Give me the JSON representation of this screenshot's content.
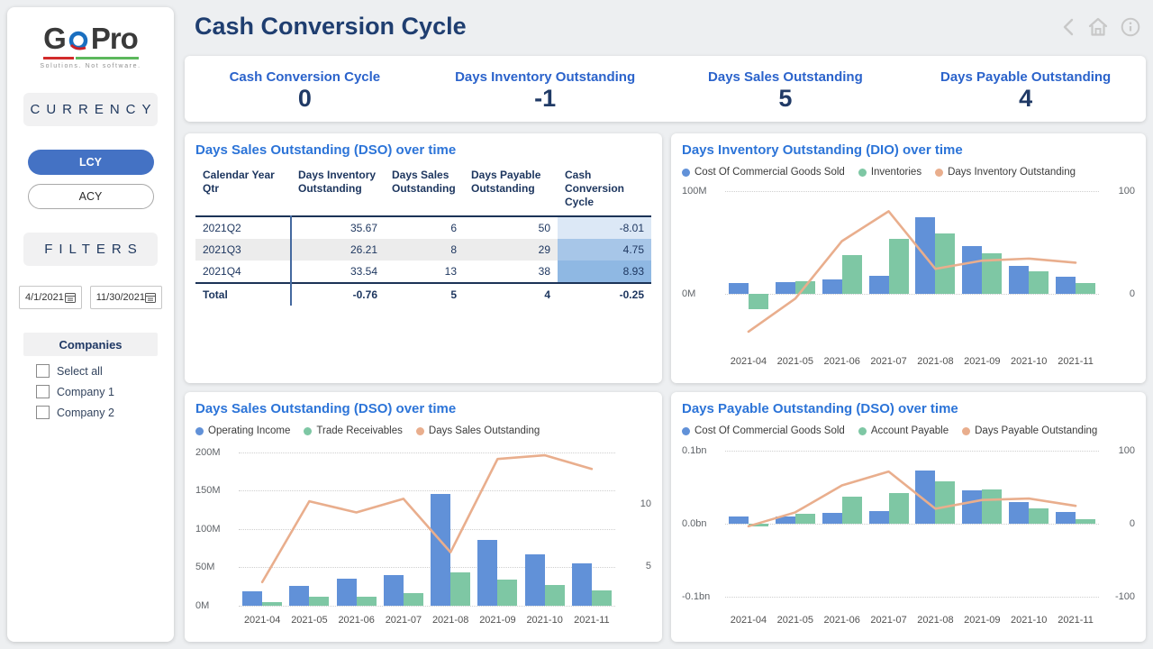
{
  "sidebar": {
    "logo": {
      "text_g": "G",
      "text_pro": "Pro",
      "tagline": "Solutions. Not software."
    },
    "currency_header": "CURRENCY",
    "lcy_label": "LCY",
    "acy_label": "ACY",
    "filters_header": "FILTERS",
    "date_from": "4/1/2021",
    "date_to": "11/30/2021",
    "companies": {
      "header": "Companies",
      "options": [
        "Select all",
        "Company 1",
        "Company 2"
      ],
      "checked": [
        false,
        false,
        false
      ]
    }
  },
  "header": {
    "title": "Cash Conversion Cycle"
  },
  "nav_icons": [
    "back-chevron",
    "home",
    "info"
  ],
  "kpis": [
    {
      "label": "Cash Conversion Cycle",
      "value": "0"
    },
    {
      "label": "Days Inventory Outstanding",
      "value": "-1"
    },
    {
      "label": "Days Sales Outstanding",
      "value": "5"
    },
    {
      "label": "Days Payable Outstanding",
      "value": "4"
    }
  ],
  "table_panel": {
    "title": "Days Sales Outstanding (DSO) over time",
    "columns": [
      "Calendar Year Qtr",
      "Days Inventory Outstanding",
      "Days Sales Outstanding",
      "Days Payable Outstanding",
      "Cash Conversion Cycle"
    ],
    "rows": [
      {
        "cells": [
          "2021Q2",
          "35.67",
          "6",
          "50",
          "-8.01"
        ],
        "ccc_bg": "#dce8f6",
        "striped": false
      },
      {
        "cells": [
          "2021Q3",
          "26.21",
          "8",
          "29",
          "4.75"
        ],
        "ccc_bg": "#a7c6e8",
        "striped": true
      },
      {
        "cells": [
          "2021Q4",
          "33.54",
          "13",
          "38",
          "8.93"
        ],
        "ccc_bg": "#8fb8e3",
        "striped": false
      }
    ],
    "total": [
      "Total",
      "-0.76",
      "5",
      "4",
      "-0.25"
    ]
  },
  "chart_data": [
    {
      "type": "combo",
      "title": "Days Inventory Outstanding (DIO) over time",
      "categories": [
        "2021-04",
        "2021-05",
        "2021-06",
        "2021-07",
        "2021-08",
        "2021-09",
        "2021-10",
        "2021-11"
      ],
      "series": [
        {
          "name": "Cost Of Commercial Goods Sold",
          "type": "bar",
          "axis": "left",
          "color": "#6191d8",
          "values": [
            10,
            11,
            14,
            17,
            74,
            46,
            27,
            16
          ]
        },
        {
          "name": "Inventories",
          "type": "bar",
          "axis": "left",
          "color": "#7ec7a4",
          "values": [
            -15,
            12,
            37,
            53,
            58,
            39,
            22,
            10
          ]
        },
        {
          "name": "Days Inventory Outstanding",
          "type": "line",
          "axis": "right",
          "color": "#e9ae8d",
          "values": [
            -37,
            -5,
            51,
            80,
            24,
            32,
            34,
            30
          ]
        }
      ],
      "axis_left": {
        "unit": "M",
        "min": -52,
        "max": 104,
        "gridlines": [
          {
            "v": 100,
            "label": "100M"
          },
          {
            "v": 0,
            "label": "0M"
          }
        ]
      },
      "axis_right": {
        "min": -52,
        "max": 104,
        "labels": [
          {
            "v": 100,
            "label": "100"
          },
          {
            "v": 0,
            "label": "0"
          }
        ]
      }
    },
    {
      "type": "combo",
      "title": "Days Sales Outstanding (DSO) over time",
      "categories": [
        "2021-04",
        "2021-05",
        "2021-06",
        "2021-07",
        "2021-08",
        "2021-09",
        "2021-10",
        "2021-11"
      ],
      "series": [
        {
          "name": "Operating Income",
          "type": "bar",
          "axis": "left",
          "color": "#6191d8",
          "values": [
            19,
            26,
            35,
            40,
            146,
            86,
            67,
            55
          ]
        },
        {
          "name": "Trade Receivables",
          "type": "bar",
          "axis": "left",
          "color": "#7ec7a4",
          "values": [
            5,
            12,
            12,
            16,
            44,
            34,
            27,
            20
          ]
        },
        {
          "name": "Days Sales Outstanding",
          "type": "line",
          "axis": "right",
          "color": "#e9ae8d",
          "values": [
            3.7,
            10.2,
            9.3,
            10.4,
            6.1,
            13.6,
            13.9,
            12.8
          ]
        }
      ],
      "axis_left": {
        "unit": "M",
        "min": 0,
        "max": 209,
        "gridlines": [
          {
            "v": 200,
            "label": "200M"
          },
          {
            "v": 150,
            "label": "150M"
          },
          {
            "v": 100,
            "label": "100M"
          },
          {
            "v": 50,
            "label": "50M"
          },
          {
            "v": 0,
            "label": "0M"
          }
        ]
      },
      "axis_right": {
        "min": 1.8,
        "max": 14.7,
        "labels": [
          {
            "v": 10,
            "label": "10"
          },
          {
            "v": 5,
            "label": "5"
          }
        ]
      }
    },
    {
      "type": "combo",
      "title": "Days Payable Outstanding (DSO) over time",
      "categories": [
        "2021-04",
        "2021-05",
        "2021-06",
        "2021-07",
        "2021-08",
        "2021-09",
        "2021-10",
        "2021-11"
      ],
      "series": [
        {
          "name": "Cost Of Commercial Goods Sold",
          "type": "bar",
          "axis": "left",
          "color": "#6191d8",
          "values": [
            0.01,
            0.01,
            0.015,
            0.018,
            0.074,
            0.046,
            0.03,
            0.016
          ]
        },
        {
          "name": "Account Payable",
          "type": "bar",
          "axis": "left",
          "color": "#7ec7a4",
          "values": [
            -0.003,
            0.014,
            0.037,
            0.043,
            0.058,
            0.048,
            0.021,
            0.007
          ]
        },
        {
          "name": "Days Payable Outstanding",
          "type": "line",
          "axis": "right",
          "color": "#e9ae8d",
          "values": [
            -3,
            16,
            53,
            72,
            21,
            33,
            35,
            25
          ]
        }
      ],
      "axis_left": {
        "unit": "bn",
        "min": -0.112,
        "max": 0.108,
        "gridlines": [
          {
            "v": 0.1,
            "label": "0.1bn"
          },
          {
            "v": 0,
            "label": "0.0bn"
          },
          {
            "v": -0.1,
            "label": "-0.1bn"
          }
        ]
      },
      "axis_right": {
        "min": -112,
        "max": 108,
        "labels": [
          {
            "v": 100,
            "label": "100"
          },
          {
            "v": 0,
            "label": "0"
          },
          {
            "v": -100,
            "label": "-100"
          }
        ]
      }
    }
  ],
  "colors": {
    "bar_blue": "#6191d8",
    "bar_green": "#7ec7a4",
    "line_orange": "#e9ae8d",
    "accent_navy": "#1f3864",
    "accent_blue": "#2b63cb",
    "selected_pill": "#4472c4"
  }
}
